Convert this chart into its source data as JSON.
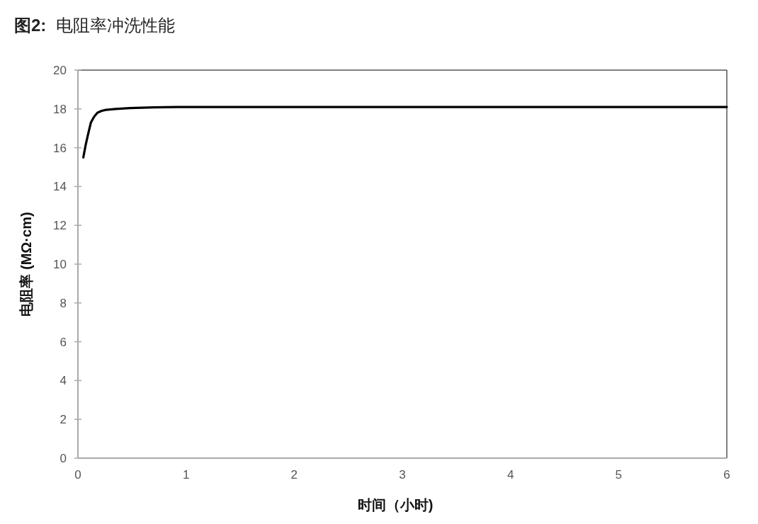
{
  "chart_data": {
    "type": "line",
    "title": "图2:  电阻率冲洗性能",
    "xlabel": "时间（小时)",
    "ylabel": "电阻率 (MΩ·cm)",
    "x": [
      0.05,
      0.07,
      0.09,
      0.12,
      0.15,
      0.18,
      0.22,
      0.26,
      0.35,
      0.48,
      0.7,
      0.92,
      1.2,
      2,
      3,
      4,
      5,
      6
    ],
    "series": [
      {
        "color": "#000000",
        "values": [
          15.5,
          16.1,
          16.6,
          17.3,
          17.6,
          17.8,
          17.9,
          17.95,
          18.0,
          18.04,
          18.08,
          18.1,
          18.1,
          18.1,
          18.1,
          18.1,
          18.1,
          18.1
        ]
      }
    ],
    "xlim": [
      0,
      6
    ],
    "xticks": [
      0,
      1,
      2,
      3,
      4,
      5,
      6
    ],
    "ylim": [
      0,
      20
    ],
    "yticks": [
      0,
      2,
      4,
      6,
      8,
      10,
      12,
      14,
      16,
      18,
      20
    ],
    "grid": false,
    "marker": "none",
    "line_style": "solid"
  }
}
